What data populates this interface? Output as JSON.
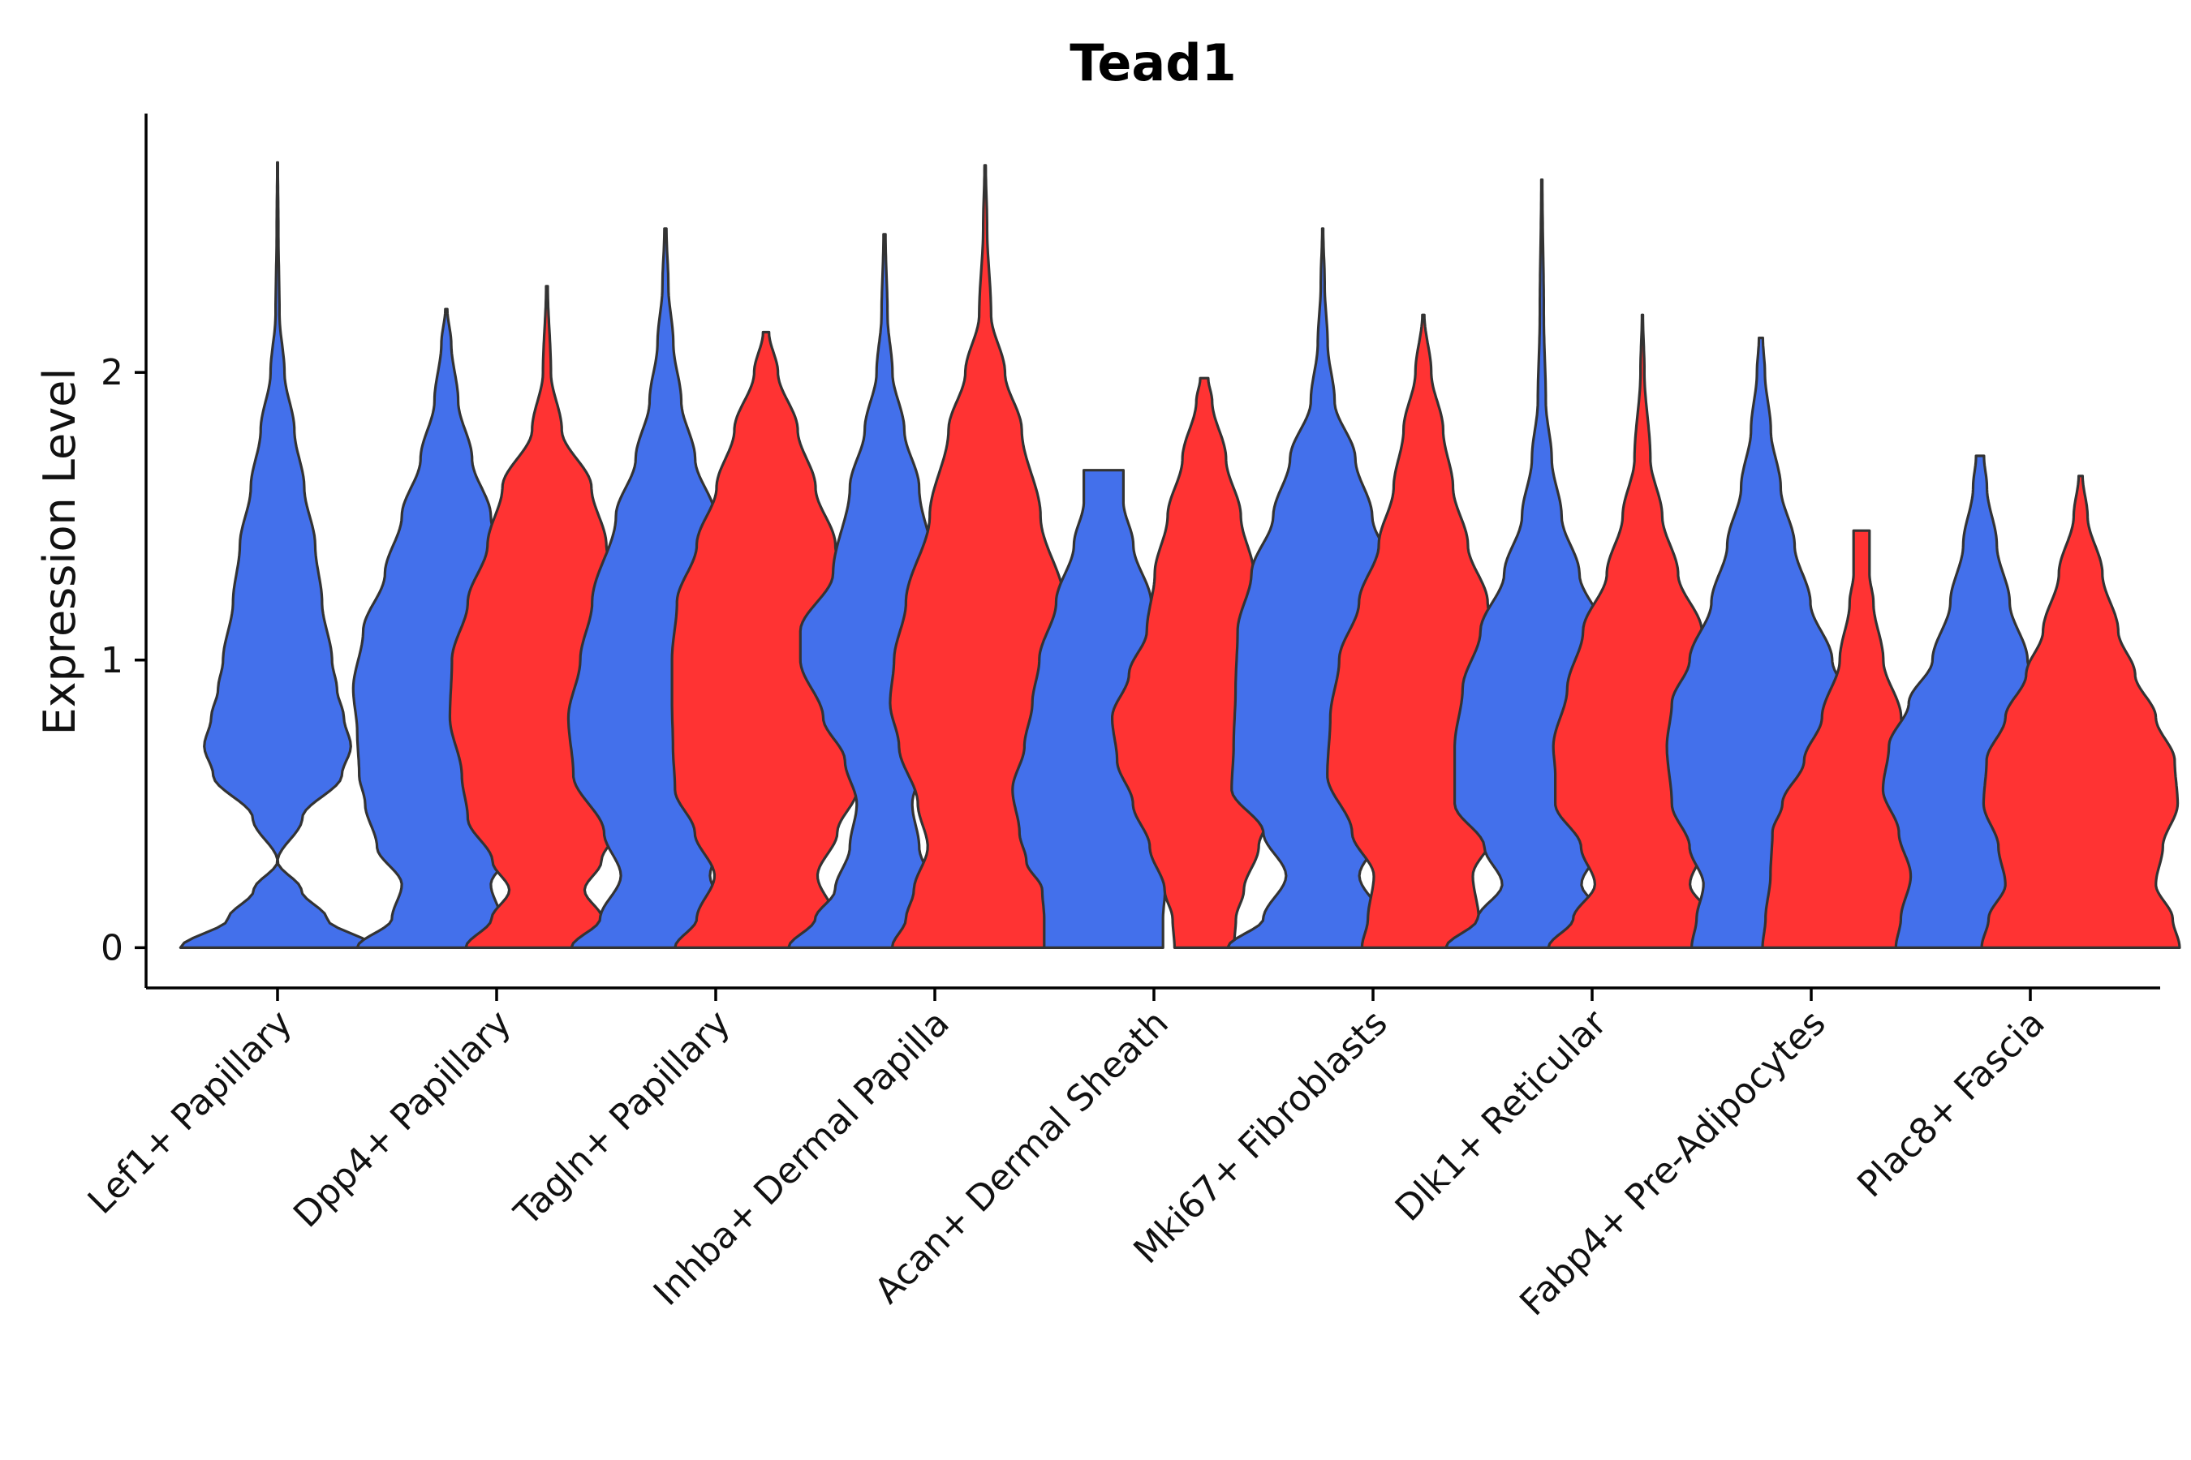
{
  "chart_data": {
    "type": "violin",
    "title": "Tead1",
    "xlabel": "",
    "ylabel": "Expression Level",
    "ylim": [
      -0.14,
      2.9
    ],
    "yticks": [
      0,
      1,
      2
    ],
    "grid": false,
    "legend": "none",
    "categories": [
      "Lef1+ Papillary",
      "Dpp4+ Papillary",
      "Tagln+ Papillary",
      "Inhba+ Dermal Papilla",
      "Acan+ Dermal Sheath",
      "Mki67+ Fibroblasts",
      "Dlk1+ Reticular",
      "Fabp4+ Pre-Adipocytes",
      "Plac8+ Fascia"
    ],
    "series": [
      {
        "name": "group1",
        "color": "#4370EB"
      },
      {
        "name": "group2",
        "color": "#FF3333"
      }
    ],
    "violins": [
      {
        "category": "Lef1+ Papillary",
        "series": "group1",
        "max": 2.73,
        "profile": [
          [
            0,
            0.98
          ],
          [
            0.1,
            0.5
          ],
          [
            0.2,
            0.24
          ],
          [
            0.3,
            0.0
          ],
          [
            0.45,
            0.25
          ],
          [
            0.6,
            0.65
          ],
          [
            0.7,
            0.74
          ],
          [
            0.8,
            0.67
          ],
          [
            0.9,
            0.6
          ],
          [
            1.0,
            0.55
          ],
          [
            1.2,
            0.45
          ],
          [
            1.4,
            0.38
          ],
          [
            1.6,
            0.27
          ],
          [
            1.8,
            0.17
          ],
          [
            2.0,
            0.07
          ],
          [
            2.2,
            0.02
          ],
          [
            2.5,
            0.008
          ],
          [
            2.73,
            0.003
          ]
        ]
      },
      {
        "category": "Dpp4+ Papillary",
        "series": "group1",
        "max": 2.22,
        "profile": [
          [
            0,
            0.9
          ],
          [
            0.1,
            0.55
          ],
          [
            0.22,
            0.45
          ],
          [
            0.35,
            0.7
          ],
          [
            0.5,
            0.82
          ],
          [
            0.6,
            0.88
          ],
          [
            0.75,
            0.9
          ],
          [
            0.9,
            0.94
          ],
          [
            1.1,
            0.84
          ],
          [
            1.3,
            0.62
          ],
          [
            1.5,
            0.45
          ],
          [
            1.7,
            0.26
          ],
          [
            1.9,
            0.12
          ],
          [
            2.1,
            0.05
          ],
          [
            2.22,
            0.01
          ]
        ]
      },
      {
        "category": "Dpp4+ Papillary",
        "series": "group2",
        "max": 2.3,
        "profile": [
          [
            0,
            0.82
          ],
          [
            0.1,
            0.56
          ],
          [
            0.2,
            0.38
          ],
          [
            0.3,
            0.55
          ],
          [
            0.45,
            0.8
          ],
          [
            0.6,
            0.86
          ],
          [
            0.8,
            0.98
          ],
          [
            1.0,
            0.96
          ],
          [
            1.2,
            0.8
          ],
          [
            1.4,
            0.6
          ],
          [
            1.6,
            0.45
          ],
          [
            1.8,
            0.15
          ],
          [
            2.0,
            0.04
          ],
          [
            2.3,
            0.008
          ]
        ]
      },
      {
        "category": "Tagln+ Papillary",
        "series": "group1",
        "max": 2.5,
        "profile": [
          [
            0,
            0.95
          ],
          [
            0.1,
            0.66
          ],
          [
            0.25,
            0.45
          ],
          [
            0.4,
            0.62
          ],
          [
            0.6,
            0.93
          ],
          [
            0.8,
            0.98
          ],
          [
            1.0,
            0.86
          ],
          [
            1.2,
            0.74
          ],
          [
            1.5,
            0.5
          ],
          [
            1.7,
            0.3
          ],
          [
            1.9,
            0.16
          ],
          [
            2.1,
            0.08
          ],
          [
            2.3,
            0.03
          ],
          [
            2.5,
            0.01
          ]
        ]
      },
      {
        "category": "Tagln+ Papillary",
        "series": "group2",
        "max": 2.14,
        "profile": [
          [
            0,
            0.92
          ],
          [
            0.1,
            0.7
          ],
          [
            0.25,
            0.52
          ],
          [
            0.4,
            0.72
          ],
          [
            0.55,
            0.92
          ],
          [
            0.7,
            0.94
          ],
          [
            0.85,
            0.95
          ],
          [
            1.0,
            0.95
          ],
          [
            1.2,
            0.9
          ],
          [
            1.4,
            0.7
          ],
          [
            1.6,
            0.5
          ],
          [
            1.8,
            0.32
          ],
          [
            2.0,
            0.12
          ],
          [
            2.14,
            0.03
          ]
        ]
      },
      {
        "category": "Inhba+ Dermal Papilla",
        "series": "group1",
        "max": 2.48,
        "profile": [
          [
            0,
            0.97
          ],
          [
            0.1,
            0.7
          ],
          [
            0.2,
            0.5
          ],
          [
            0.35,
            0.35
          ],
          [
            0.5,
            0.28
          ],
          [
            0.65,
            0.4
          ],
          [
            0.8,
            0.62
          ],
          [
            1.0,
            0.85
          ],
          [
            1.1,
            0.85
          ],
          [
            1.3,
            0.52
          ],
          [
            1.6,
            0.35
          ],
          [
            1.8,
            0.2
          ],
          [
            2.0,
            0.08
          ],
          [
            2.2,
            0.03
          ],
          [
            2.48,
            0.01
          ]
        ]
      },
      {
        "category": "Inhba+ Dermal Papilla",
        "series": "group2",
        "max": 2.72,
        "profile": [
          [
            0,
            0.94
          ],
          [
            0.1,
            0.8
          ],
          [
            0.2,
            0.72
          ],
          [
            0.35,
            0.58
          ],
          [
            0.5,
            0.68
          ],
          [
            0.7,
            0.87
          ],
          [
            0.85,
            0.96
          ],
          [
            1.0,
            0.92
          ],
          [
            1.2,
            0.8
          ],
          [
            1.5,
            0.56
          ],
          [
            1.8,
            0.37
          ],
          [
            2.0,
            0.2
          ],
          [
            2.2,
            0.06
          ],
          [
            2.5,
            0.02
          ],
          [
            2.72,
            0.006
          ]
        ]
      },
      {
        "category": "Acan+ Dermal Sheath",
        "series": "group1",
        "max": 1.66,
        "profile": [
          [
            0,
            0.6
          ],
          [
            0.1,
            0.6
          ],
          [
            0.2,
            0.62
          ],
          [
            0.3,
            0.78
          ],
          [
            0.4,
            0.85
          ],
          [
            0.55,
            0.92
          ],
          [
            0.7,
            0.8
          ],
          [
            0.85,
            0.72
          ],
          [
            1.0,
            0.65
          ],
          [
            1.2,
            0.48
          ],
          [
            1.4,
            0.3
          ],
          [
            1.55,
            0.2
          ],
          [
            1.66,
            0.2
          ]
        ]
      },
      {
        "category": "Acan+ Dermal Sheath",
        "series": "group2",
        "max": 1.98,
        "profile": [
          [
            0,
            0.3
          ],
          [
            0.1,
            0.32
          ],
          [
            0.2,
            0.4
          ],
          [
            0.35,
            0.55
          ],
          [
            0.5,
            0.72
          ],
          [
            0.65,
            0.88
          ],
          [
            0.8,
            0.93
          ],
          [
            0.95,
            0.76
          ],
          [
            1.1,
            0.58
          ],
          [
            1.3,
            0.5
          ],
          [
            1.5,
            0.37
          ],
          [
            1.7,
            0.22
          ],
          [
            1.9,
            0.08
          ],
          [
            1.98,
            0.04
          ]
        ]
      },
      {
        "category": "Mki67+ Fibroblasts",
        "series": "group1",
        "max": 2.5,
        "profile": [
          [
            0,
            0.96
          ],
          [
            0.1,
            0.6
          ],
          [
            0.25,
            0.37
          ],
          [
            0.4,
            0.6
          ],
          [
            0.55,
            0.92
          ],
          [
            0.7,
            0.9
          ],
          [
            0.9,
            0.88
          ],
          [
            1.1,
            0.86
          ],
          [
            1.3,
            0.72
          ],
          [
            1.5,
            0.5
          ],
          [
            1.7,
            0.33
          ],
          [
            1.9,
            0.12
          ],
          [
            2.1,
            0.05
          ],
          [
            2.3,
            0.02
          ],
          [
            2.5,
            0.005
          ]
        ]
      },
      {
        "category": "Mki67+ Fibroblasts",
        "series": "group2",
        "max": 2.2,
        "profile": [
          [
            0,
            0.62
          ],
          [
            0.1,
            0.56
          ],
          [
            0.25,
            0.5
          ],
          [
            0.4,
            0.72
          ],
          [
            0.6,
            0.97
          ],
          [
            0.8,
            0.94
          ],
          [
            1.0,
            0.85
          ],
          [
            1.2,
            0.65
          ],
          [
            1.4,
            0.45
          ],
          [
            1.6,
            0.3
          ],
          [
            1.8,
            0.2
          ],
          [
            2.0,
            0.08
          ],
          [
            2.2,
            0.01
          ]
        ]
      },
      {
        "category": "Dlk1+ Reticular",
        "series": "group1",
        "max": 2.67,
        "profile": [
          [
            0,
            0.97
          ],
          [
            0.1,
            0.65
          ],
          [
            0.22,
            0.4
          ],
          [
            0.35,
            0.58
          ],
          [
            0.5,
            0.88
          ],
          [
            0.7,
            0.88
          ],
          [
            0.9,
            0.8
          ],
          [
            1.1,
            0.62
          ],
          [
            1.3,
            0.38
          ],
          [
            1.5,
            0.2
          ],
          [
            1.7,
            0.1
          ],
          [
            1.9,
            0.04
          ],
          [
            2.2,
            0.02
          ],
          [
            2.67,
            0.005
          ]
        ]
      },
      {
        "category": "Dlk1+ Reticular",
        "series": "group2",
        "max": 2.2,
        "profile": [
          [
            0,
            0.95
          ],
          [
            0.1,
            0.7
          ],
          [
            0.22,
            0.48
          ],
          [
            0.35,
            0.62
          ],
          [
            0.5,
            0.88
          ],
          [
            0.6,
            0.88
          ],
          [
            0.7,
            0.9
          ],
          [
            0.9,
            0.76
          ],
          [
            1.1,
            0.6
          ],
          [
            1.3,
            0.36
          ],
          [
            1.5,
            0.2
          ],
          [
            1.7,
            0.08
          ],
          [
            2.0,
            0.02
          ],
          [
            2.2,
            0.005
          ]
        ]
      },
      {
        "category": "Fabp4+ Pre-Adipocytes",
        "series": "group1",
        "max": 2.12,
        "profile": [
          [
            0,
            0.7
          ],
          [
            0.1,
            0.65
          ],
          [
            0.22,
            0.58
          ],
          [
            0.35,
            0.72
          ],
          [
            0.5,
            0.9
          ],
          [
            0.7,
            0.95
          ],
          [
            0.85,
            0.9
          ],
          [
            1.0,
            0.72
          ],
          [
            1.2,
            0.5
          ],
          [
            1.4,
            0.34
          ],
          [
            1.6,
            0.2
          ],
          [
            1.8,
            0.1
          ],
          [
            2.0,
            0.04
          ],
          [
            2.12,
            0.02
          ]
        ]
      },
      {
        "category": "Fabp4+ Pre-Adipocytes",
        "series": "group2",
        "max": 1.45,
        "profile": [
          [
            0,
            1.0
          ],
          [
            0.1,
            0.97
          ],
          [
            0.25,
            0.92
          ],
          [
            0.4,
            0.9
          ],
          [
            0.5,
            0.8
          ],
          [
            0.65,
            0.58
          ],
          [
            0.8,
            0.4
          ],
          [
            1.0,
            0.22
          ],
          [
            1.2,
            0.12
          ],
          [
            1.3,
            0.08
          ],
          [
            1.45,
            0.08
          ]
        ]
      },
      {
        "category": "Plac8+ Fascia",
        "series": "group1",
        "max": 1.71,
        "profile": [
          [
            0,
            0.85
          ],
          [
            0.1,
            0.8
          ],
          [
            0.25,
            0.7
          ],
          [
            0.4,
            0.82
          ],
          [
            0.55,
            0.98
          ],
          [
            0.7,
            0.92
          ],
          [
            0.85,
            0.72
          ],
          [
            1.0,
            0.48
          ],
          [
            1.2,
            0.3
          ],
          [
            1.4,
            0.17
          ],
          [
            1.6,
            0.07
          ],
          [
            1.71,
            0.04
          ]
        ]
      },
      {
        "category": "Plac8+ Fascia",
        "series": "group2",
        "max": 1.64,
        "profile": [
          [
            0,
            1.0
          ],
          [
            0.1,
            0.93
          ],
          [
            0.22,
            0.76
          ],
          [
            0.35,
            0.83
          ],
          [
            0.5,
            0.98
          ],
          [
            0.65,
            0.95
          ],
          [
            0.8,
            0.76
          ],
          [
            0.95,
            0.55
          ],
          [
            1.1,
            0.38
          ],
          [
            1.3,
            0.22
          ],
          [
            1.5,
            0.07
          ],
          [
            1.64,
            0.02
          ]
        ]
      }
    ]
  }
}
